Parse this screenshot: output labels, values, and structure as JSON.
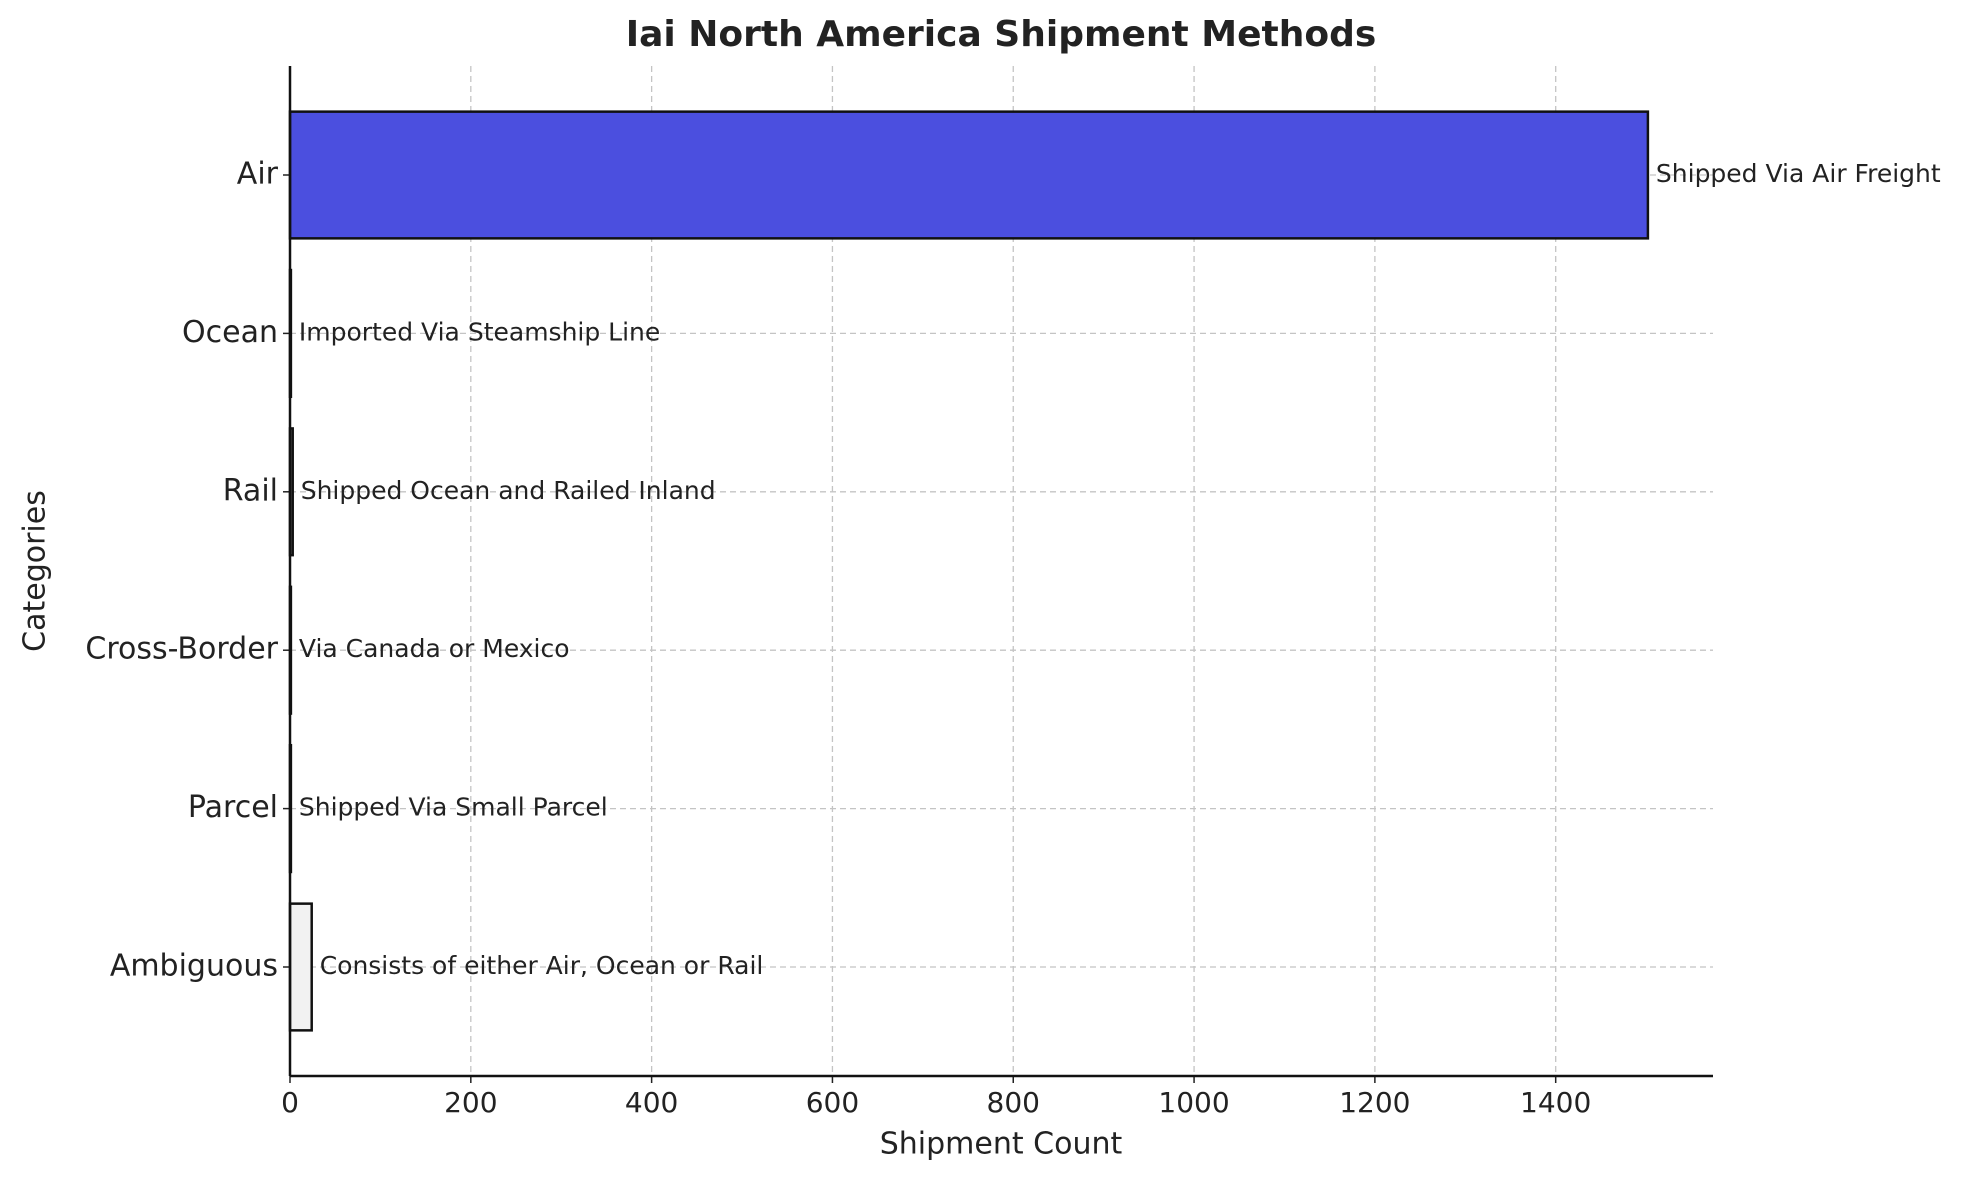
{
  "chart_data": {
    "type": "barh",
    "title": "Iai North America Shipment Methods",
    "x_label": "Shipment Count",
    "y_label": "Categories",
    "categories": [
      "Air",
      "Ocean",
      "Rail",
      "Cross-Border",
      "Parcel",
      "Ambiguous"
    ],
    "values": [
      1502,
      1,
      3,
      1,
      1,
      24
    ],
    "colors": [
      "#4b4fdf",
      "#ffffff",
      "#ffffff",
      "#ffffff",
      "#ffffff",
      "#f2f2f2"
    ],
    "annotations": [
      "Shipped Via Air Freight",
      "Imported Via Steamship Line",
      "Shipped Ocean and Railed Inland",
      "Via Canada or Mexico",
      "Shipped Via Small Parcel",
      "Consists of either Air, Ocean or Rail"
    ],
    "xlim": [
      0,
      1574
    ],
    "xticks": [
      0,
      200,
      400,
      600,
      800,
      1000,
      1200,
      1400
    ],
    "grid": true
  }
}
